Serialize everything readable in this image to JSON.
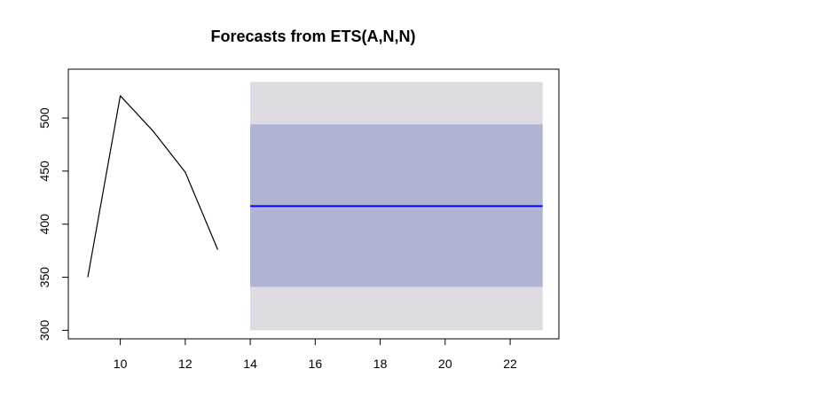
{
  "chart_data": {
    "type": "line",
    "title": "Forecasts from ETS(A,N,N)",
    "xlabel": "",
    "ylabel": "",
    "xlim": [
      8.4,
      23.5
    ],
    "ylim": [
      292,
      546
    ],
    "x_ticks": [
      10,
      12,
      14,
      16,
      18,
      20,
      22
    ],
    "y_ticks": [
      300,
      350,
      400,
      450,
      500
    ],
    "grid": false,
    "legend": "none",
    "series": [
      {
        "role": "observed",
        "x": [
          9,
          10,
          11,
          12,
          13
        ],
        "y": [
          350,
          521,
          488,
          449,
          376
        ],
        "color": "#000000"
      },
      {
        "role": "point-forecast",
        "x": [
          14,
          23
        ],
        "y": [
          417,
          417
        ],
        "color": "#0000ff"
      }
    ],
    "intervals": [
      {
        "level": 95,
        "x": [
          14,
          23
        ],
        "lower": 300,
        "upper": 534,
        "color": "#dcdbe1"
      },
      {
        "level": 80,
        "x": [
          14,
          23
        ],
        "lower": 341,
        "upper": 494,
        "color": "#b1b3d2"
      }
    ]
  }
}
